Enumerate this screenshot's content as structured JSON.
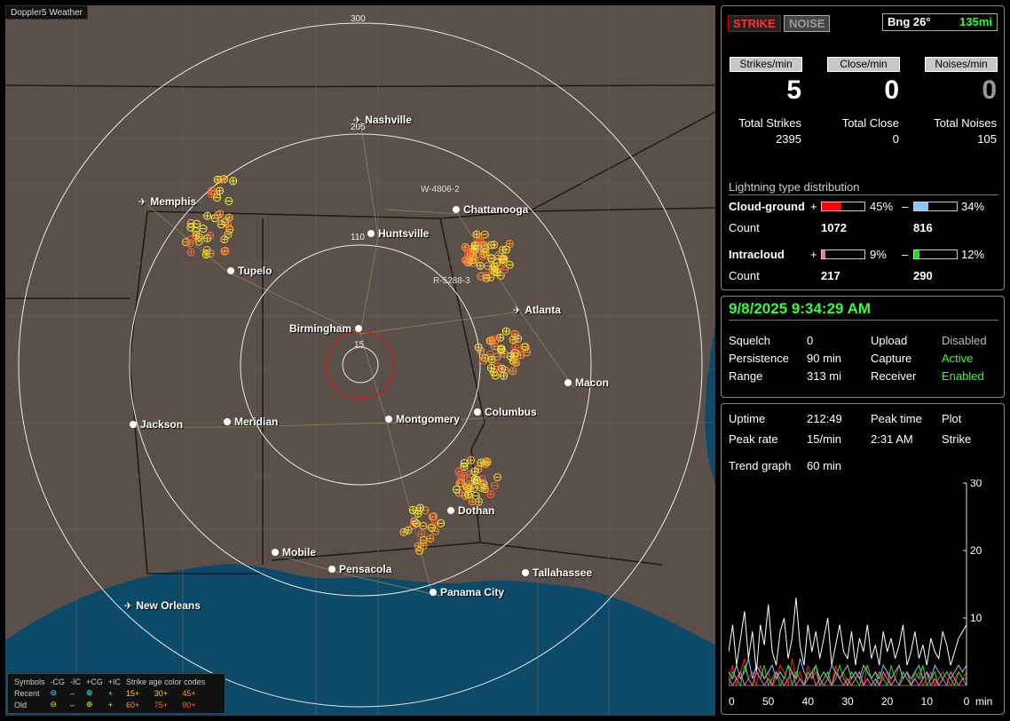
{
  "app_title": "Doppler5 Weather",
  "map": {
    "ring_labels": [
      "300",
      "205",
      "110",
      "15"
    ],
    "cities": [
      {
        "name": "Nashville",
        "icon": "airport-icon"
      },
      {
        "name": "Memphis",
        "icon": "airport-icon"
      },
      {
        "name": "Chattanooga",
        "icon": "city-dot-icon"
      },
      {
        "name": "Huntsville",
        "icon": "city-dot-icon"
      },
      {
        "name": "Tupelo",
        "icon": "city-dot-icon"
      },
      {
        "name": "Atlanta",
        "icon": "airport-icon"
      },
      {
        "name": "Birmingham",
        "icon": "city-dot-icon"
      },
      {
        "name": "Macon",
        "icon": "city-dot-icon"
      },
      {
        "name": "Jackson",
        "icon": "city-dot-icon"
      },
      {
        "name": "Meridian",
        "icon": "city-dot-icon"
      },
      {
        "name": "Montgomery",
        "icon": "city-dot-icon"
      },
      {
        "name": "Columbus",
        "icon": "city-dot-icon"
      },
      {
        "name": "Dothan",
        "icon": "city-dot-icon"
      },
      {
        "name": "Mobile",
        "icon": "city-dot-icon"
      },
      {
        "name": "Pensacola",
        "icon": "city-dot-icon"
      },
      {
        "name": "Tallahassee",
        "icon": "city-dot-icon"
      },
      {
        "name": "Panama City",
        "icon": "city-dot-icon"
      },
      {
        "name": "New Orleans",
        "icon": "airport-icon"
      }
    ],
    "storm_ids": [
      "W-4806-2",
      "R-5288-3"
    ],
    "legend": {
      "header": [
        "Symbols",
        "-CG",
        "-IC",
        "+CG",
        "+IC",
        "Strike age color codes"
      ],
      "recent": {
        "label": "Recent",
        "ages": [
          "15+",
          "30+",
          "45+"
        ]
      },
      "old": {
        "label": "Old",
        "ages": [
          "60+",
          "75+",
          "90+"
        ]
      }
    }
  },
  "status": {
    "strike_tab": "STRIKE",
    "noise_tab": "NOISE",
    "bearing": "Bng 26°",
    "range": "135mi",
    "strikes_per_min_label": "Strikes/min",
    "close_per_min_label": "Close/min",
    "noises_per_min_label": "Noises/min",
    "strikes_per_min": "5",
    "close_per_min": "0",
    "noises_per_min": "0",
    "total_strikes_label": "Total Strikes",
    "total_close_label": "Total Close",
    "total_noises_label": "Total Noises",
    "total_strikes": "2395",
    "total_close": "0",
    "total_noises": "105"
  },
  "distribution": {
    "title": "Lightning type distribution",
    "count_label": "Count",
    "cloud_ground": {
      "label": "Cloud-ground",
      "pos_pct": "45%",
      "neg_pct": "34%",
      "pos_count": "1072",
      "neg_count": "816",
      "pos_frac": 0.45,
      "neg_frac": 0.34,
      "pos_color": "#ff0000",
      "neg_color": "#88c8f0"
    },
    "intracloud": {
      "label": "Intracloud",
      "pos_pct": "9%",
      "neg_pct": "12%",
      "pos_count": "217",
      "neg_count": "290",
      "pos_frac": 0.09,
      "neg_frac": 0.12,
      "pos_color": "#f070c0",
      "neg_color": "#22dd22"
    },
    "plus": "+",
    "minus": "–"
  },
  "settings": {
    "datetime": "9/8/2025 9:34:29 AM",
    "squelch_label": "Squelch",
    "squelch": "0",
    "persistence_label": "Persistence",
    "persistence": "90 min",
    "range_label": "Range",
    "range": "313 mi",
    "upload_label": "Upload",
    "upload": "Disabled",
    "capture_label": "Capture",
    "capture": "Active",
    "receiver_label": "Receiver",
    "receiver": "Enabled"
  },
  "trend": {
    "uptime_label": "Uptime",
    "uptime": "212:49",
    "peak_time_label": "Peak time",
    "peak_time": "2:31 AM",
    "plot_label": "Plot",
    "plot": "Strike",
    "peak_rate_label": "Peak rate",
    "peak_rate": "15/min",
    "trend_graph_label": "Trend graph",
    "trend_graph": "60 min",
    "y_ticks": [
      "30",
      "20",
      "10"
    ],
    "x_ticks": [
      "60",
      "50",
      "40",
      "30",
      "20",
      "10",
      "0"
    ],
    "x_unit": "min"
  },
  "chart_data": {
    "type": "line",
    "title": "",
    "xlabel": "min",
    "ylabel": "",
    "xlim": [
      60,
      0
    ],
    "ylim": [
      0,
      30
    ],
    "series": [
      {
        "color": "#ffffff",
        "values": [
          5,
          9,
          3,
          7,
          11,
          4,
          8,
          2,
          9,
          6,
          12,
          5,
          3,
          8,
          10,
          4,
          7,
          13,
          6,
          3,
          9,
          5,
          8,
          4,
          7,
          10,
          3,
          6,
          9,
          5,
          4,
          8,
          3,
          7,
          5,
          9,
          4,
          6,
          3,
          8,
          5,
          7,
          4,
          6,
          9,
          3,
          5,
          8,
          4,
          6,
          3,
          7,
          5,
          4,
          8,
          6,
          3,
          5,
          7,
          8,
          9
        ]
      },
      {
        "color": "#ff2020",
        "values": [
          1,
          3,
          0,
          2,
          4,
          1,
          2,
          0,
          3,
          1,
          2,
          0,
          1,
          3,
          2,
          0,
          4,
          1,
          2,
          0,
          3,
          1,
          2,
          0,
          1,
          2,
          0,
          3,
          1,
          2,
          0,
          1,
          2,
          1,
          0,
          3,
          1,
          2,
          0,
          1,
          2,
          0,
          1,
          3,
          1,
          2,
          0,
          1,
          2,
          0,
          1,
          2,
          0,
          1,
          2,
          1,
          0,
          1,
          2,
          1,
          2
        ]
      },
      {
        "color": "#88c8f0",
        "values": [
          2,
          1,
          3,
          1,
          2,
          4,
          1,
          3,
          2,
          1,
          2,
          3,
          1,
          2,
          1,
          3,
          2,
          1,
          4,
          2,
          1,
          2,
          3,
          1,
          2,
          1,
          3,
          2,
          1,
          2,
          3,
          1,
          2,
          1,
          3,
          2,
          1,
          2,
          1,
          3,
          2,
          1,
          2,
          3,
          1,
          2,
          1,
          2,
          3,
          1,
          2,
          1,
          3,
          2,
          1,
          2,
          1,
          2,
          3,
          2,
          3
        ]
      },
      {
        "color": "#22dd22",
        "values": [
          0,
          2,
          1,
          0,
          3,
          1,
          0,
          2,
          1,
          3,
          0,
          1,
          2,
          0,
          1,
          3,
          0,
          2,
          1,
          0,
          2,
          1,
          3,
          0,
          1,
          2,
          0,
          1,
          3,
          1,
          0,
          2,
          1,
          0,
          2,
          3,
          1,
          0,
          2,
          1,
          0,
          3,
          1,
          0,
          2,
          1,
          0,
          2,
          1,
          3,
          0,
          1,
          2,
          0,
          1,
          2,
          1,
          0,
          2,
          1,
          1
        ]
      },
      {
        "color": "#f070c0",
        "values": [
          1,
          0,
          1,
          2,
          0,
          1,
          0,
          2,
          1,
          0,
          1,
          0,
          2,
          1,
          0,
          1,
          2,
          0,
          1,
          0,
          1,
          2,
          0,
          1,
          0,
          1,
          0,
          2,
          1,
          0,
          1,
          0,
          1,
          2,
          0,
          1,
          0,
          1,
          0,
          2,
          1,
          0,
          1,
          0,
          1,
          2,
          0,
          1,
          0,
          1,
          2,
          0,
          1,
          0,
          1,
          0,
          2,
          1,
          0,
          1,
          0
        ]
      }
    ]
  }
}
